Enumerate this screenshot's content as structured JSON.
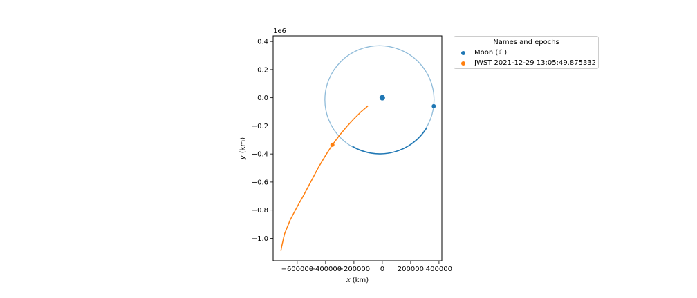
{
  "chart_data": {
    "type": "scatter",
    "title": "",
    "xlabel": "x (km)",
    "ylabel": "y (km)",
    "x_label_var": "x",
    "x_label_unit": "(km)",
    "y_label_var": "y",
    "y_label_unit": "(km)",
    "y_offset_text": "1e6",
    "xlim": [
      -770000,
      420000
    ],
    "ylim": [
      -1160000,
      440000
    ],
    "xticks": [
      -600000,
      -400000,
      -200000,
      0,
      200000,
      400000
    ],
    "xtick_labels": [
      "−600000",
      "−400000",
      "−200000",
      "0",
      "200000",
      "400000"
    ],
    "yticks": [
      -1000000,
      -800000,
      -600000,
      -400000,
      -200000,
      0,
      200000,
      400000
    ],
    "ytick_labels": [
      "−1.0",
      "−0.8",
      "−0.6",
      "−0.4",
      "−0.2",
      "0.0",
      "0.2",
      "0.4"
    ],
    "grid": false,
    "legend": {
      "title": "Names and epochs",
      "placement": "outside-top-right",
      "entries": [
        "Moon (☾)",
        "JWST 2021-12-29 13:05:49.875332"
      ]
    },
    "attractor": {
      "x": 0,
      "y": 0,
      "color": "#1f77b4"
    },
    "series": [
      {
        "name": "Moon (☾)",
        "color": "#1f77b4",
        "marker": {
          "x": 363000,
          "y": -60000
        },
        "orbit": {
          "center_x": -20000,
          "center_y": -15000,
          "radius_x": 385000,
          "radius_y": 385000,
          "trail_end_x": 313000,
          "trail_end_y": -215000
        }
      },
      {
        "name": "JWST 2021-12-29 13:05:49.875332",
        "color": "#ff7f0e",
        "marker": {
          "x": -352000,
          "y": -335000
        },
        "trajectory": [
          [
            -100000,
            -57000
          ],
          [
            -150000,
            -100000
          ],
          [
            -200000,
            -150000
          ],
          [
            -250000,
            -205000
          ],
          [
            -300000,
            -265000
          ],
          [
            -352000,
            -335000
          ],
          [
            -400000,
            -410000
          ],
          [
            -450000,
            -495000
          ],
          [
            -500000,
            -590000
          ],
          [
            -550000,
            -685000
          ],
          [
            -600000,
            -775000
          ],
          [
            -650000,
            -870000
          ],
          [
            -690000,
            -970000
          ],
          [
            -710000,
            -1060000
          ],
          [
            -715000,
            -1090000
          ]
        ]
      }
    ]
  }
}
